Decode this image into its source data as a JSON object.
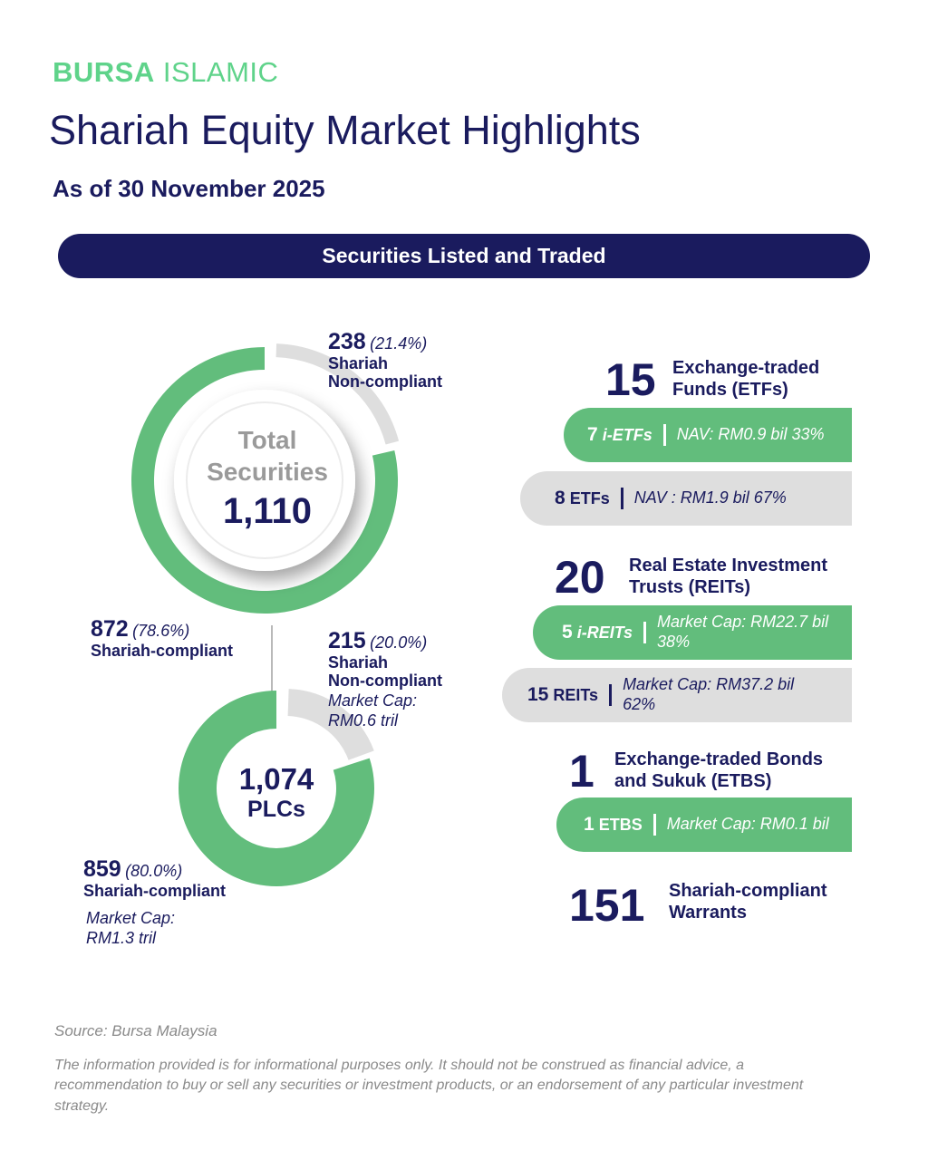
{
  "header": {
    "brand_bold": "BURSA",
    "brand_light": "ISLAMIC",
    "title": "Shariah Equity Market Highlights",
    "date": "As of 30 November 2025"
  },
  "banner": "Securities Listed and Traded",
  "colors": {
    "navy": "#1a1b5e",
    "green": "#62bd7c",
    "brand_green": "#5fd38a",
    "gray": "#dedede"
  },
  "chart_data": [
    {
      "type": "pie",
      "center_label_1": "Total",
      "center_label_2": "Securities",
      "center_value": "1,110",
      "slices": [
        {
          "count_text": "872",
          "pct_text": "(78.6%)",
          "label": "Shariah-compliant",
          "value": 78.6,
          "color": "#62bd7c"
        },
        {
          "count_text": "238",
          "pct_text": "(21.4%)",
          "label_1": "Shariah",
          "label_2": "Non-compliant",
          "value": 21.4,
          "color": "#dedede"
        }
      ]
    },
    {
      "type": "pie",
      "center_value": "1,074",
      "center_label": "PLCs",
      "slices": [
        {
          "count_text": "859",
          "pct_text": "(80.0%)",
          "label": "Shariah-compliant",
          "cap_1": "Market Cap:",
          "cap_2": "RM1.3 tril",
          "value": 80.0,
          "color": "#62bd7c"
        },
        {
          "count_text": "215",
          "pct_text": "(20.0%)",
          "label_1": "Shariah",
          "label_2": "Non-compliant",
          "cap_1": "Market Cap:",
          "cap_2": "RM0.6 tril",
          "value": 20.0,
          "color": "#dedede"
        }
      ]
    }
  ],
  "etf": {
    "count": "15",
    "label_1": "Exchange-traded",
    "label_2": "Funds (ETFs)",
    "rows": [
      {
        "num": "7",
        "unit": "i-ETFs",
        "detail": "NAV: RM0.9 bil 33%"
      },
      {
        "num": "8",
        "unit": "ETFs",
        "detail": "NAV : RM1.9 bil 67%"
      }
    ]
  },
  "reit": {
    "count": "20",
    "label_1": "Real Estate Investment",
    "label_2": "Trusts (REITs)",
    "rows": [
      {
        "num": "5",
        "unit": "i-REITs",
        "detail_1": "Market Cap: RM22.7 bil",
        "detail_2": "38%"
      },
      {
        "num": "15",
        "unit": "REITs",
        "detail_1": "Market Cap: RM37.2 bil",
        "detail_2": "62%"
      }
    ]
  },
  "etbs": {
    "count": "1",
    "label_1": "Exchange-traded Bonds",
    "label_2": "and Sukuk (ETBS)",
    "rows": [
      {
        "num": "1",
        "unit": "ETBS",
        "detail": "Market Cap: RM0.1 bil"
      }
    ]
  },
  "warrants": {
    "count": "151",
    "label_1": "Shariah-compliant",
    "label_2": "Warrants"
  },
  "footer": {
    "source": "Source: Bursa Malaysia",
    "disclaimer": "The information provided is for informational purposes only. It should not be construed as financial advice, a recommendation to buy or sell any securities or investment products, or an endorsement of any particular investment strategy."
  }
}
